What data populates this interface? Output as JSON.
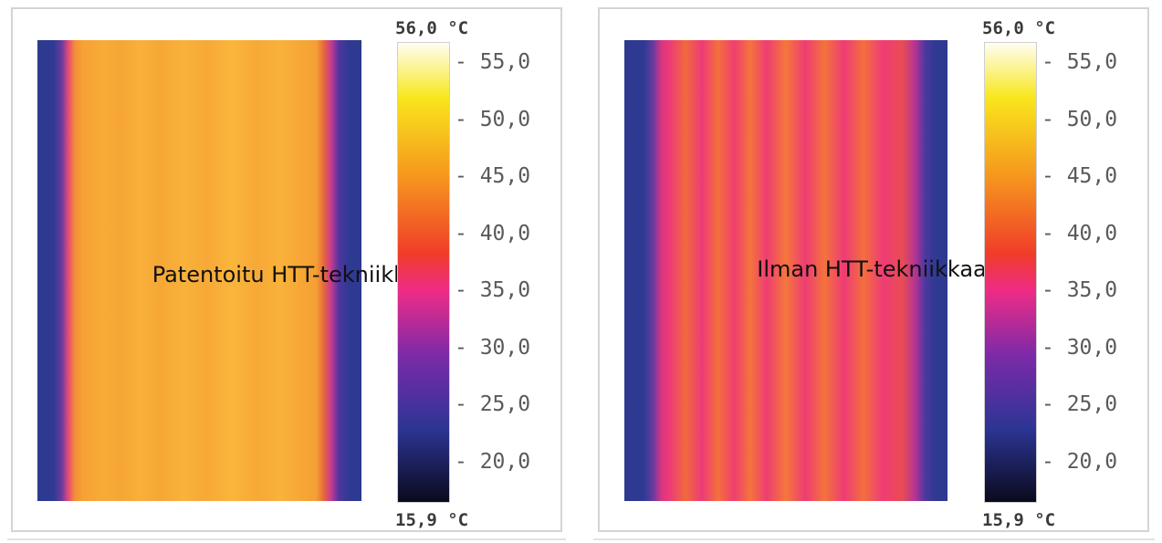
{
  "panels": [
    {
      "label": "Patentoitu HTT-tekniikka",
      "scale_max": "56,0 °C",
      "scale_min": "15,9 °C",
      "ticks": [
        "55,0",
        "50,0",
        "45,0",
        "40,0",
        "35,0",
        "30,0",
        "25,0",
        "20,0"
      ]
    },
    {
      "label": "Ilman HTT-tekniikkaa",
      "scale_max": "56,0 °C",
      "scale_min": "15,9 °C",
      "ticks": [
        "55,0",
        "50,0",
        "45,0",
        "40,0",
        "35,0",
        "30,0",
        "25,0",
        "20,0"
      ]
    }
  ],
  "colors": {
    "scale_white": "#fffef4",
    "scale_yellow": "#f8e61c",
    "scale_orange": "#f6921e",
    "scale_red": "#f03c2a",
    "scale_magenta": "#ee2c86",
    "scale_purple": "#7d2aa8",
    "scale_blue": "#2c3594",
    "scale_black": "#0a0a1c"
  }
}
